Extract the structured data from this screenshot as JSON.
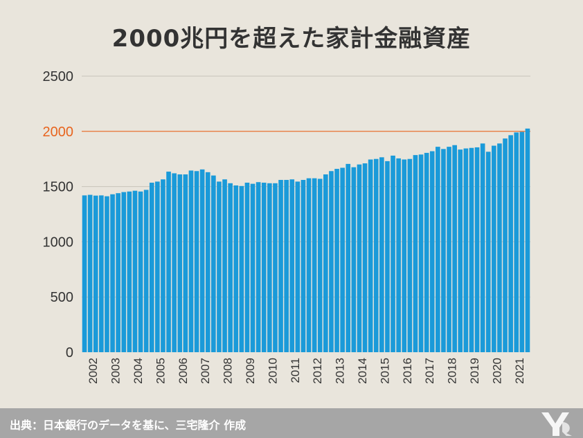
{
  "title": "2000兆円を超えた家計金融資産",
  "source": "出典：日本銀行のデータを基に、三宅隆介 作成",
  "colors": {
    "bar": "#1a9ad9",
    "highlight": "#e8641e",
    "grid": "#c8c3ba",
    "background": "#e9e5dc",
    "footer": "#a6a6a6"
  },
  "chart_data": {
    "type": "bar",
    "title": "2000兆円を超えた家計金融資産",
    "xlabel": "",
    "ylabel": "",
    "ylim": [
      0,
      2500
    ],
    "yticks": [
      0,
      500,
      1000,
      1500,
      2000,
      2500
    ],
    "highlight_tick": 2000,
    "x_year_labels": [
      "2002",
      "2003",
      "2004",
      "2005",
      "2006",
      "2007",
      "2008",
      "2009",
      "2010",
      "2011",
      "2012",
      "2013",
      "2014",
      "2015",
      "2016",
      "2017",
      "2018",
      "2019",
      "2020",
      "2021"
    ],
    "grid": true,
    "legend": "none",
    "values": [
      1420,
      1425,
      1418,
      1420,
      1412,
      1430,
      1440,
      1450,
      1455,
      1462,
      1455,
      1470,
      1535,
      1545,
      1565,
      1635,
      1620,
      1610,
      1610,
      1645,
      1640,
      1655,
      1630,
      1600,
      1545,
      1565,
      1530,
      1510,
      1505,
      1535,
      1525,
      1540,
      1535,
      1530,
      1530,
      1560,
      1560,
      1565,
      1545,
      1560,
      1575,
      1575,
      1570,
      1610,
      1640,
      1660,
      1670,
      1705,
      1675,
      1700,
      1710,
      1745,
      1750,
      1765,
      1730,
      1780,
      1755,
      1745,
      1750,
      1785,
      1790,
      1805,
      1820,
      1860,
      1840,
      1860,
      1875,
      1835,
      1845,
      1850,
      1855,
      1890,
      1815,
      1870,
      1890,
      1935,
      1965,
      1990,
      1995,
      2025
    ]
  }
}
